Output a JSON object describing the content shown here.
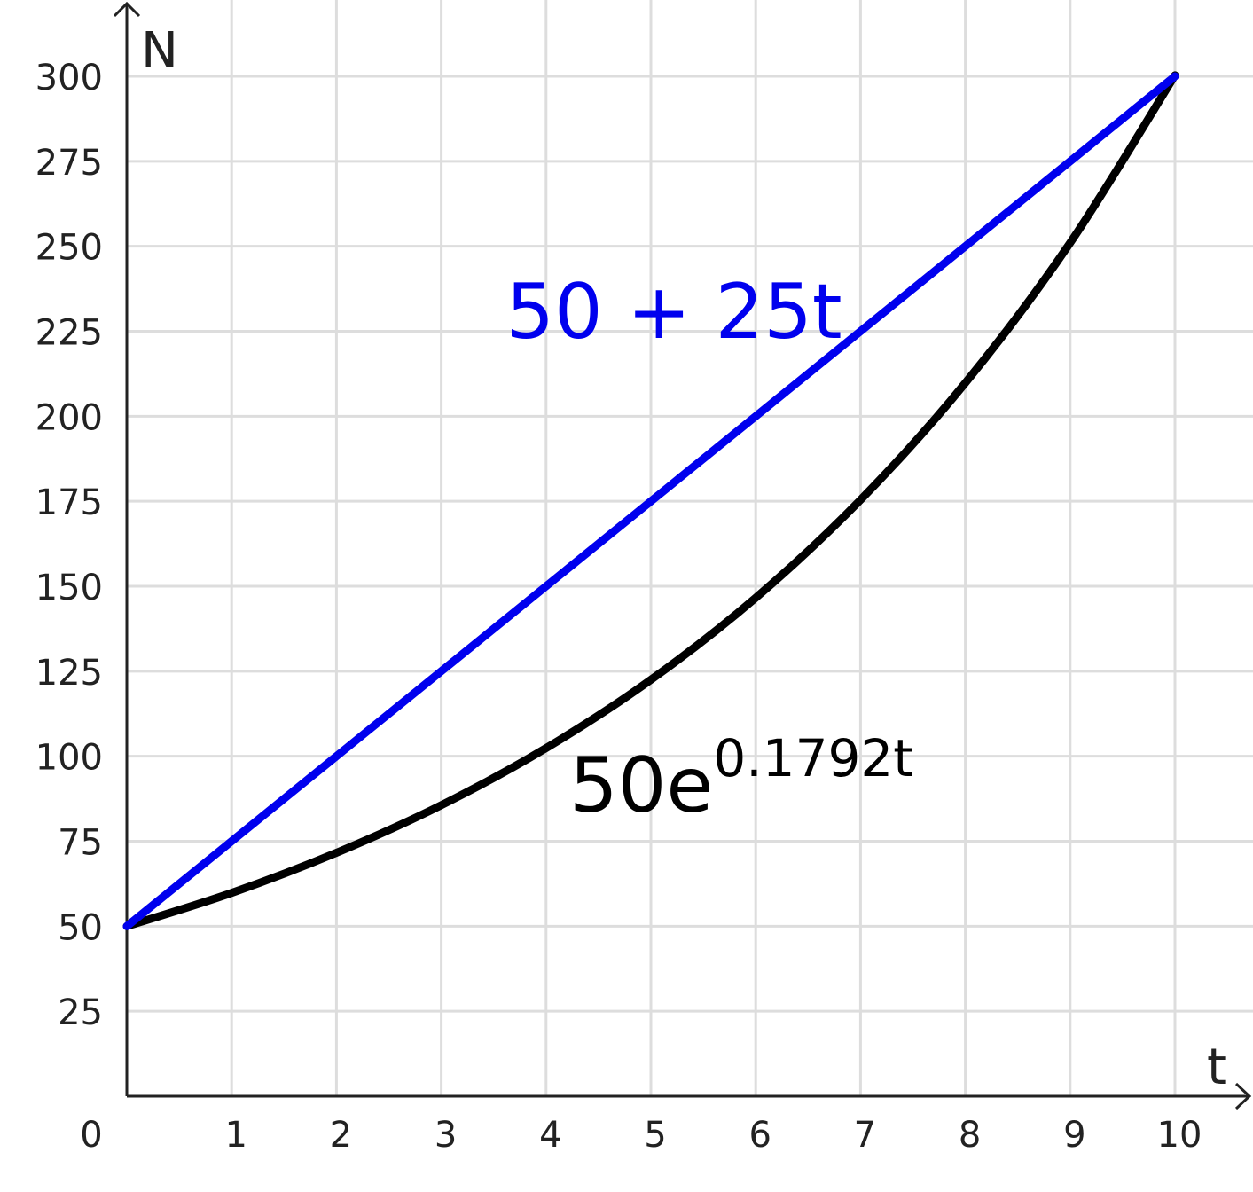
{
  "chart_data": {
    "type": "line",
    "xlabel": "t",
    "ylabel": "N",
    "xlim": [
      0,
      10
    ],
    "ylim": [
      0,
      300
    ],
    "x_ticks": [
      "0",
      "1",
      "2",
      "3",
      "4",
      "5",
      "6",
      "7",
      "8",
      "9",
      "10"
    ],
    "y_ticks": [
      "25",
      "50",
      "75",
      "100",
      "125",
      "150",
      "175",
      "200",
      "225",
      "250",
      "275",
      "300"
    ],
    "grid": true,
    "series": [
      {
        "name": "50 + 25t",
        "color": "#0000ee",
        "x": [
          0,
          10
        ],
        "y": [
          50,
          300
        ]
      },
      {
        "name": "50e^{0.1792t}",
        "color": "#000000",
        "x": [
          0,
          1,
          2,
          3,
          4,
          5,
          6,
          7,
          8,
          9,
          10
        ],
        "y": [
          50,
          59.8,
          71.6,
          85.6,
          102.4,
          122.5,
          146.6,
          175.4,
          209.8,
          251.0,
          300.3
        ]
      }
    ],
    "annotations": {
      "linear": "50 + 25t",
      "exp_base": "50e",
      "exp_power": "0.1792t"
    }
  }
}
